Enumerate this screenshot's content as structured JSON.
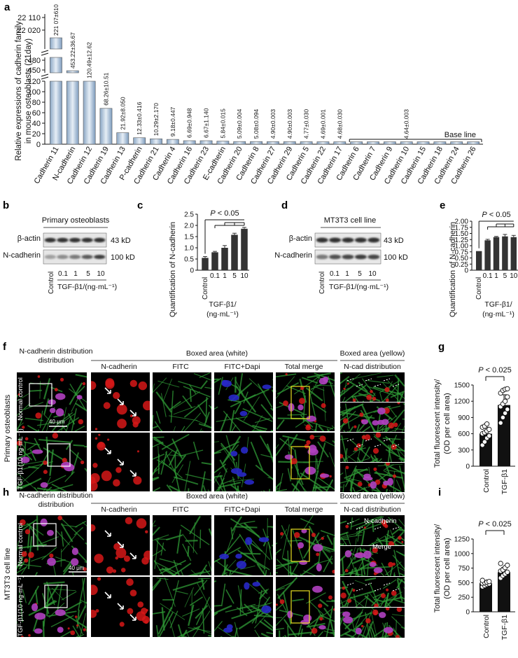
{
  "panel_letters": [
    "a",
    "b",
    "c",
    "d",
    "e",
    "f",
    "g",
    "h",
    "i"
  ],
  "colors": {
    "bar_gradient_light": "#dfe9f3",
    "bar_gradient_dark": "#7d9bbd",
    "dark_bar": "#333333",
    "micro_bg": "#000000",
    "micro_green": "#2f9a36",
    "micro_red": "#d61818",
    "micro_blue": "#2828c8",
    "box_white": "#ffffff",
    "box_yellow": "#e8e020"
  },
  "panel_a": {
    "chart_data": {
      "type": "bar",
      "ylabel": "Relative expressions of cadherin family in mouse osteoblasts (21day)",
      "ylabel_lines": [
        "Relative expressions of cadherin family",
        "in mouse osteoblasts (21day)"
      ],
      "yticks_lower": [
        "0",
        "20",
        "40",
        "60",
        "80",
        "100",
        "120"
      ],
      "yticks_upper": [
        "450",
        "480",
        "22 020",
        "22 110"
      ],
      "ylim": [
        0,
        22110
      ],
      "axis_breaks": true,
      "categories": [
        "Cadherin 11",
        "N-cadherin",
        "Cadherin 12",
        "Cadherin 19",
        "Cadherin 13",
        "P-cadherin",
        "Cadherin 21",
        "Cadherin 4",
        "Cadherin 16",
        "Cadherin 23",
        "E-cadherin",
        "Cadherin 20",
        "Cadherin 8",
        "Cadherin 27",
        "Cadherin 29",
        "Cadherin 5",
        "Cadherin 22",
        "Cadherin 17",
        "Cadherin 6",
        "Cadherin 7",
        "Cadherin 9",
        "Cadherin 10",
        "Cadherin 15",
        "Cadherin 18",
        "Cadherin 24",
        "Cadherin 26"
      ],
      "values": [
        22107,
        453.22,
        120.49,
        68.26,
        21.92,
        12.33,
        10.29,
        9.18,
        6.69,
        6.67,
        5.84,
        5.09,
        5.08,
        4.9,
        4.9,
        4.77,
        4.69,
        4.68,
        4.64,
        4.64,
        4.64,
        4.64,
        4.64,
        4.64,
        4.64,
        4.64
      ],
      "value_labels": [
        "221 07±610",
        "453.22±36.67",
        "120.49±12.62",
        "68.26±10.51",
        "21.92±8.050",
        "12.33±0.416",
        "10.29±2.170",
        "9.18±0.447",
        "6.69±0.948",
        "6.67±1.140",
        "5.84±0.015",
        "5.09±0.004",
        "5.08±0.094",
        "4.90±0.003",
        "4.90±0.003",
        "4.77±0.030",
        "4.69±0.001",
        "4.68±0.030",
        "",
        "",
        "",
        "4.64±0.003",
        "",
        "",
        "",
        ""
      ],
      "baseline_label": "Base line"
    }
  },
  "panel_b": {
    "title": "Primary osteoblasts",
    "rows": [
      "β-actin",
      "N-cadherin"
    ],
    "sizes": [
      "43 kD",
      "100 kD"
    ],
    "lanes": [
      "Control",
      "0.1",
      "1",
      "5",
      "10"
    ],
    "xlabel": "TGF-β1/(ng·mL⁻¹)"
  },
  "panel_c": {
    "chart_data": {
      "type": "bar",
      "ylabel": "Quantification of N-cadherin",
      "categories": [
        "Control",
        "0.1",
        "1",
        "5",
        "10"
      ],
      "values": [
        0.55,
        0.8,
        1.0,
        1.58,
        1.85
      ],
      "errors": [
        0.06,
        0.04,
        0.1,
        0.07,
        0.06
      ],
      "ylim": [
        0,
        2.5
      ],
      "yticks": [
        "0",
        "0.5",
        "1.0",
        "1.5",
        "2.0",
        "2.5"
      ],
      "xlabel_lines": [
        "TGF-β1/",
        "(ng·mL⁻¹)"
      ],
      "annotation": "P < 0.05"
    }
  },
  "panel_d": {
    "title": "MT3T3 cell line",
    "rows": [
      "β-actin",
      "N-cadherin"
    ],
    "sizes": [
      "43 kD",
      "100 kD"
    ],
    "lanes": [
      "Control",
      "0.1",
      "1",
      "5",
      "10"
    ],
    "xlabel": "TGF-β1/(ng·mL⁻¹)"
  },
  "panel_e": {
    "chart_data": {
      "type": "bar",
      "ylabel": "Quantification of N-cadherin",
      "categories": [
        "Control",
        "0.1",
        "1",
        "5",
        "10"
      ],
      "values": [
        0.78,
        1.22,
        1.35,
        1.38,
        1.35
      ],
      "errors": [
        0.0,
        0.04,
        0.03,
        0.08,
        0.07
      ],
      "ylim": [
        0,
        2.0
      ],
      "yticks": [
        "0",
        "0.25",
        "0.50",
        "0.75",
        "1.00",
        "1.25",
        "1.50",
        "1.75",
        "2.00"
      ],
      "xlabel_lines": [
        "TGF-β1/",
        "(ng·mL⁻¹)"
      ],
      "annotation": "P < 0.05"
    }
  },
  "panel_f": {
    "col_headers": [
      "N-cadherin distribution",
      "Boxed area (white)",
      "Boxed area (yellow)"
    ],
    "sub_headers": [
      "N-cadherin",
      "FITC",
      "FITC+Dapi",
      "Total merge",
      "N-cad distribution"
    ],
    "row_labels": [
      "Normal control",
      "TGF-β1(10 ng·mL⁻¹)"
    ],
    "side_label": "Primary osteoblasts",
    "scale_bar": "40 μm"
  },
  "panel_g": {
    "chart_data": {
      "type": "bar",
      "ylabel": "Total fluorescent intensity/ (OD per cell area)",
      "ylabel_lines": [
        "Total fluorescent intensity/",
        "(OD per cell area)"
      ],
      "categories": [
        "Control",
        "TGF-β1"
      ],
      "values": [
        600,
        1130
      ],
      "errors": [
        120,
        190
      ],
      "ylim": [
        0,
        1500
      ],
      "yticks": [
        "0",
        "300",
        "600",
        "900",
        "1200",
        "1500"
      ],
      "points": [
        [
          390,
          450,
          520,
          560,
          600,
          620,
          650,
          680,
          720,
          740,
          780
        ],
        [
          800,
          900,
          980,
          1050,
          1100,
          1150,
          1200,
          1280,
          1350,
          1400,
          1420,
          1430
        ]
      ],
      "annotation": "P < 0.025"
    }
  },
  "panel_h": {
    "col_headers": [
      "N-cadherin distribution",
      "Boxed area (white)",
      "Boxed area (yellow)"
    ],
    "sub_headers": [
      "N-cadherin",
      "FITC",
      "FITC+Dapi",
      "Total merge",
      "N-cad distribution"
    ],
    "row_labels": [
      "Normal control",
      "TGF-β1(10 ng·mL⁻¹)"
    ],
    "side_label": "MT3T3 cell line",
    "scale_bar": "40 μm",
    "inset_labels": [
      "N-cadherin",
      "Merge"
    ]
  },
  "panel_i": {
    "chart_data": {
      "type": "bar",
      "ylabel": "Total fluorescent intensity/ (OD per cell area)",
      "ylabel_lines": [
        "Total fluorescent intensity/",
        "(OD per cell area)"
      ],
      "categories": [
        "Control",
        "TGF-β1"
      ],
      "values": [
        490,
        680
      ],
      "errors": [
        40,
        80
      ],
      "ylim": [
        0,
        1250
      ],
      "yticks": [
        "0",
        "250",
        "500",
        "750",
        "1000",
        "1250"
      ],
      "points": [
        [
          430,
          450,
          470,
          480,
          490,
          500,
          510,
          520,
          540
        ],
        [
          580,
          620,
          650,
          680,
          700,
          720,
          760,
          800,
          830
        ]
      ],
      "annotation": "P < 0.025"
    }
  }
}
